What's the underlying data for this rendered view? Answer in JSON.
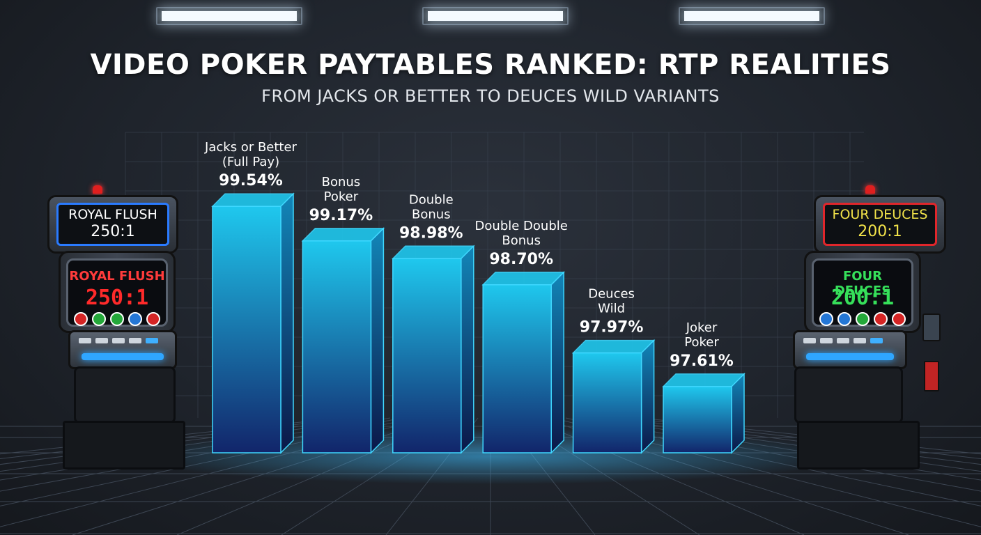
{
  "title": "VIDEO POKER PAYTABLES RANKED: RTP REALITIES",
  "subtitle": "FROM JACKS OR BETTER TO DEUCES WILD VARIANTS",
  "left_machine": {
    "top_line1": "ROYAL FLUSH",
    "top_line2": "250:1",
    "screen_line1": "ROYAL FLUSH",
    "screen_line2": "250:1",
    "top_color": "#ffffff",
    "screen_line1_color": "#ff3b3b",
    "screen_line2_color": "#ff2a2a",
    "frame_color": "#2a7bff"
  },
  "right_machine": {
    "top_line1": "FOUR DEUCES",
    "top_line2": "200:1",
    "screen_line1": "FOUR DEUCES",
    "screen_line2": "200:1",
    "top_color": "#f2e34a",
    "screen_line1_color": "#36e05a",
    "screen_line2_color": "#36e05a",
    "frame_color": "#e0262b"
  },
  "chart_data": {
    "type": "bar",
    "title": "VIDEO POKER PAYTABLES RANKED: RTP REALITIES",
    "subtitle": "FROM JACKS OR BETTER TO DEUCES WILD VARIANTS",
    "categories": [
      [
        "Jacks or Better",
        "(Full Pay)"
      ],
      [
        "Bonus",
        "Poker"
      ],
      [
        "Double",
        "Bonus"
      ],
      [
        "Double Double",
        "Bonus"
      ],
      [
        "Deuces",
        "Wild"
      ],
      [
        "Joker",
        "Poker"
      ]
    ],
    "values": [
      99.54,
      99.17,
      98.98,
      98.7,
      97.97,
      97.61
    ],
    "value_labels": [
      "99.54%",
      "99.17%",
      "98.98%",
      "98.70%",
      "97.97%",
      "97.61%"
    ],
    "unit": "%",
    "xlabel": "",
    "ylabel": "",
    "ylim": [
      96.9,
      99.9
    ],
    "grid": true,
    "legend": "none",
    "bar_color_top": "#1fc8ee",
    "bar_color_bottom": "#12256a",
    "bar_edge_color": "#3fd8ff"
  }
}
